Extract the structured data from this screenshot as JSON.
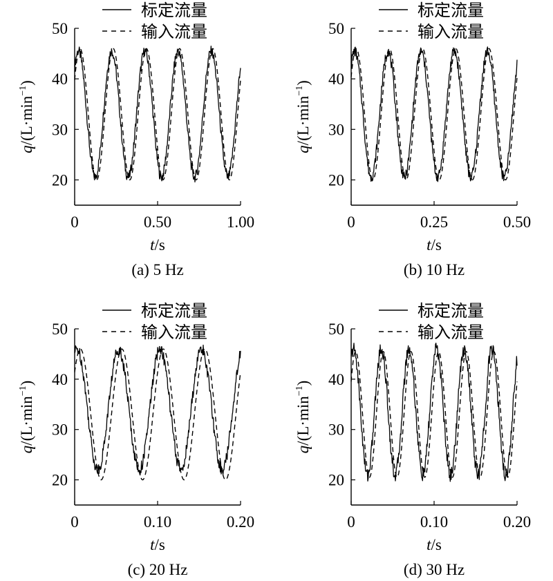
{
  "chart_data": [
    {
      "type": "line",
      "caption": "(a) 5 Hz",
      "xlabel_italic": "t",
      "xlabel_unit": "/s",
      "ylabel_italic": "q",
      "ylabel_unit": "/(L·min",
      "ylabel_sup": "−1",
      "ylabel_close": ")",
      "xlim": [
        0,
        1.0
      ],
      "ylim": [
        15,
        50
      ],
      "xticks": [
        0,
        0.5,
        1.0
      ],
      "xtick_labels": [
        "0",
        "0.50",
        "1.00"
      ],
      "yticks": [
        20,
        30,
        40,
        50
      ],
      "ytick_labels": [
        "20",
        "30",
        "40",
        "50"
      ],
      "legend_position": "top",
      "series": [
        {
          "name": "标定流量",
          "style": "solid",
          "freq": 5,
          "mean": 33,
          "amp": 12.5,
          "phase": 0.85,
          "noise": 1.0,
          "t_end": 1.0,
          "flat_bottom": false
        },
        {
          "name": "输入流量",
          "style": "dashed",
          "freq": 5,
          "mean": 33,
          "amp": 13,
          "phase": 0.55,
          "noise": 0,
          "t_end": 1.0,
          "flat_bottom": true
        }
      ]
    },
    {
      "type": "line",
      "caption": "(b) 10 Hz",
      "xlabel_italic": "t",
      "xlabel_unit": "/s",
      "ylabel_italic": "q",
      "ylabel_unit": "/(L·min",
      "ylabel_sup": "−1",
      "ylabel_close": ")",
      "xlim": [
        0,
        0.5
      ],
      "ylim": [
        15,
        50
      ],
      "xticks": [
        0,
        0.25,
        0.5
      ],
      "xtick_labels": [
        "0",
        "0.25",
        "0.50"
      ],
      "yticks": [
        20,
        30,
        40,
        50
      ],
      "ytick_labels": [
        "20",
        "30",
        "40",
        "50"
      ],
      "legend_position": "top",
      "series": [
        {
          "name": "标定流量",
          "style": "solid",
          "freq": 10,
          "mean": 33,
          "amp": 12.5,
          "phase": 0.9,
          "noise": 1.0,
          "t_end": 0.5,
          "flat_bottom": false
        },
        {
          "name": "输入流量",
          "style": "dashed",
          "freq": 10,
          "mean": 33,
          "amp": 13,
          "phase": 0.6,
          "noise": 0,
          "t_end": 0.5,
          "flat_bottom": true
        }
      ]
    },
    {
      "type": "line",
      "caption": "(c) 20 Hz",
      "xlabel_italic": "t",
      "xlabel_unit": "/s",
      "ylabel_italic": "q",
      "ylabel_unit": "/(L·min",
      "ylabel_sup": "−1",
      "ylabel_close": ")",
      "xlim": [
        0,
        0.2
      ],
      "ylim": [
        15,
        50
      ],
      "xticks": [
        0,
        0.1,
        0.2
      ],
      "xtick_labels": [
        "0",
        "0.10",
        "0.20"
      ],
      "yticks": [
        20,
        30,
        40,
        50
      ],
      "ytick_labels": [
        "20",
        "30",
        "40",
        "50"
      ],
      "legend_position": "top",
      "series": [
        {
          "name": "标定流量",
          "style": "solid",
          "freq": 20,
          "mean": 34,
          "amp": 12,
          "phase": 1.2,
          "noise": 1.2,
          "t_end": 0.2,
          "flat_bottom": false
        },
        {
          "name": "输入流量",
          "style": "dashed",
          "freq": 20,
          "mean": 33,
          "amp": 13,
          "phase": 0.7,
          "noise": 0,
          "t_end": 0.2,
          "flat_bottom": true
        }
      ]
    },
    {
      "type": "line",
      "caption": "(d) 30 Hz",
      "xlabel_italic": "t",
      "xlabel_unit": "/s",
      "ylabel_italic": "q",
      "ylabel_unit": "/(L·min",
      "ylabel_sup": "−1",
      "ylabel_close": ")",
      "xlim": [
        0,
        0.2
      ],
      "ylim": [
        15,
        50
      ],
      "xticks": [
        0,
        0.1,
        0.2
      ],
      "xtick_labels": [
        "0",
        "0.10",
        "0.20"
      ],
      "yticks": [
        20,
        30,
        40,
        50
      ],
      "ytick_labels": [
        "20",
        "30",
        "40",
        "50"
      ],
      "legend_position": "top",
      "series": [
        {
          "name": "标定流量",
          "style": "solid",
          "freq": 30,
          "mean": 33.5,
          "amp": 12.5,
          "phase": 1.0,
          "noise": 1.4,
          "t_end": 0.2,
          "flat_bottom": false
        },
        {
          "name": "输入流量",
          "style": "dashed",
          "freq": 30,
          "mean": 33,
          "amp": 12.5,
          "phase": 0.55,
          "noise": 0,
          "t_end": 0.2,
          "flat_bottom": true
        }
      ]
    }
  ]
}
